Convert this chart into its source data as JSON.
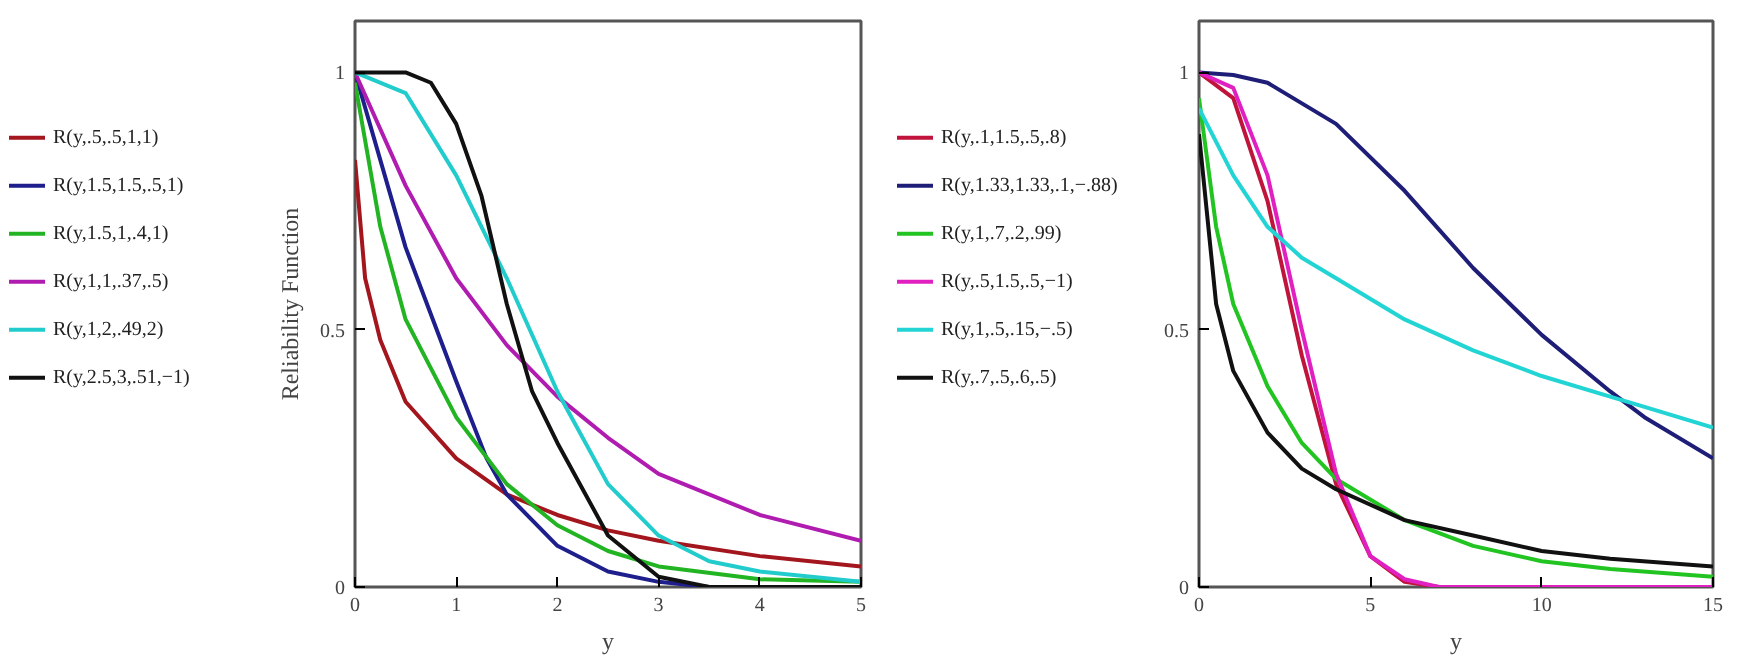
{
  "chart_data": [
    {
      "type": "line",
      "ylabel": "Reliability Function",
      "xlabel": "y",
      "xlim": [
        0,
        5
      ],
      "ylim": [
        0,
        1.1
      ],
      "xticks": [
        0,
        1,
        2,
        3,
        4,
        5
      ],
      "yticks": [
        0,
        0.5,
        1
      ],
      "grid": false,
      "legend": "left",
      "line_style": "solid",
      "series": [
        {
          "name": "R(y,.5,.5,1,1)",
          "color": "#a3161e",
          "x": [
            0,
            0.1,
            0.25,
            0.5,
            1,
            1.5,
            2,
            2.5,
            3,
            4,
            5
          ],
          "values": [
            0.83,
            0.6,
            0.48,
            0.36,
            0.25,
            0.18,
            0.14,
            0.11,
            0.09,
            0.06,
            0.04
          ]
        },
        {
          "name": "R(y,1.5,1.5,.5,1)",
          "color": "#1e1e8c",
          "x": [
            0,
            0.5,
            1,
            1.3,
            1.5,
            2,
            2.5,
            3,
            3.5,
            5
          ],
          "values": [
            1,
            0.66,
            0.4,
            0.25,
            0.18,
            0.08,
            0.03,
            0.01,
            0,
            0
          ]
        },
        {
          "name": "R(y,1.5,1,.4,1)",
          "color": "#22b422",
          "x": [
            0,
            0.25,
            0.5,
            1,
            1.5,
            2,
            2.5,
            3,
            4,
            5
          ],
          "values": [
            0.98,
            0.7,
            0.52,
            0.33,
            0.2,
            0.12,
            0.07,
            0.04,
            0.015,
            0.01
          ]
        },
        {
          "name": "R(y,1,1,.37,.5)",
          "color": "#b01cb0",
          "x": [
            0,
            0.5,
            1,
            1.5,
            2,
            2.5,
            3,
            4,
            5
          ],
          "values": [
            1,
            0.78,
            0.6,
            0.47,
            0.37,
            0.29,
            0.22,
            0.14,
            0.09
          ]
        },
        {
          "name": "R(y,1,2,.49,2)",
          "color": "#22cccc",
          "x": [
            0,
            0.5,
            1,
            1.5,
            2,
            2.5,
            3,
            3.5,
            4,
            5
          ],
          "values": [
            1,
            0.96,
            0.8,
            0.6,
            0.38,
            0.2,
            0.1,
            0.05,
            0.03,
            0.01
          ]
        },
        {
          "name": "R(y,2.5,3,.51,−1)",
          "color": "#111111",
          "x": [
            0,
            0.5,
            0.75,
            1,
            1.25,
            1.5,
            1.75,
            2,
            2.5,
            3,
            3.5,
            5
          ],
          "values": [
            1,
            1,
            0.98,
            0.9,
            0.76,
            0.55,
            0.38,
            0.28,
            0.1,
            0.02,
            0,
            0
          ]
        }
      ]
    },
    {
      "type": "line",
      "xlabel": "y",
      "xlim": [
        0,
        15
      ],
      "ylim": [
        0,
        1.1
      ],
      "xticks": [
        0,
        5,
        10,
        15
      ],
      "yticks": [
        0,
        0.5,
        1
      ],
      "grid": false,
      "legend": "left",
      "line_style": "solid",
      "series": [
        {
          "name": "R(y,.1,1.5,.5,.8)",
          "color": "#c0143c",
          "x": [
            0,
            1,
            2,
            3,
            4,
            5,
            6,
            7,
            15
          ],
          "values": [
            1,
            0.95,
            0.75,
            0.45,
            0.2,
            0.06,
            0.01,
            0,
            0
          ]
        },
        {
          "name": "R(y,1.33,1.33,.1,−.88)",
          "color": "#1e1e78",
          "x": [
            0,
            1,
            2,
            4,
            6,
            8,
            10,
            12,
            13,
            15
          ],
          "values": [
            1,
            0.995,
            0.98,
            0.9,
            0.77,
            0.62,
            0.49,
            0.38,
            0.33,
            0.25
          ]
        },
        {
          "name": "R(y,1,.7,.2,.99)",
          "color": "#22c422",
          "x": [
            0,
            0.5,
            1,
            2,
            3,
            4,
            6,
            8,
            10,
            12,
            15
          ],
          "values": [
            0.95,
            0.7,
            0.55,
            0.39,
            0.28,
            0.21,
            0.13,
            0.08,
            0.05,
            0.035,
            0.02
          ]
        },
        {
          "name": "R(y,.5,1.5,.5,−1)",
          "color": "#e020c0",
          "x": [
            0,
            1,
            2,
            3,
            4,
            5,
            6,
            7,
            15
          ],
          "values": [
            1,
            0.97,
            0.8,
            0.5,
            0.22,
            0.06,
            0.015,
            0,
            0
          ]
        },
        {
          "name": "R(y,1,.5,.15,−.5)",
          "color": "#22d4d4",
          "x": [
            0,
            1,
            2,
            3,
            4,
            6,
            8,
            10,
            12,
            13,
            15
          ],
          "values": [
            0.93,
            0.8,
            0.7,
            0.64,
            0.6,
            0.52,
            0.46,
            0.41,
            0.37,
            0.35,
            0.31
          ]
        },
        {
          "name": "R(y,.7,.5,.6,.5)",
          "color": "#111111",
          "x": [
            0,
            0.5,
            1,
            2,
            3,
            4,
            6,
            8,
            10,
            12,
            15
          ],
          "values": [
            0.88,
            0.55,
            0.42,
            0.3,
            0.23,
            0.19,
            0.13,
            0.1,
            0.07,
            0.055,
            0.04
          ]
        }
      ]
    }
  ]
}
